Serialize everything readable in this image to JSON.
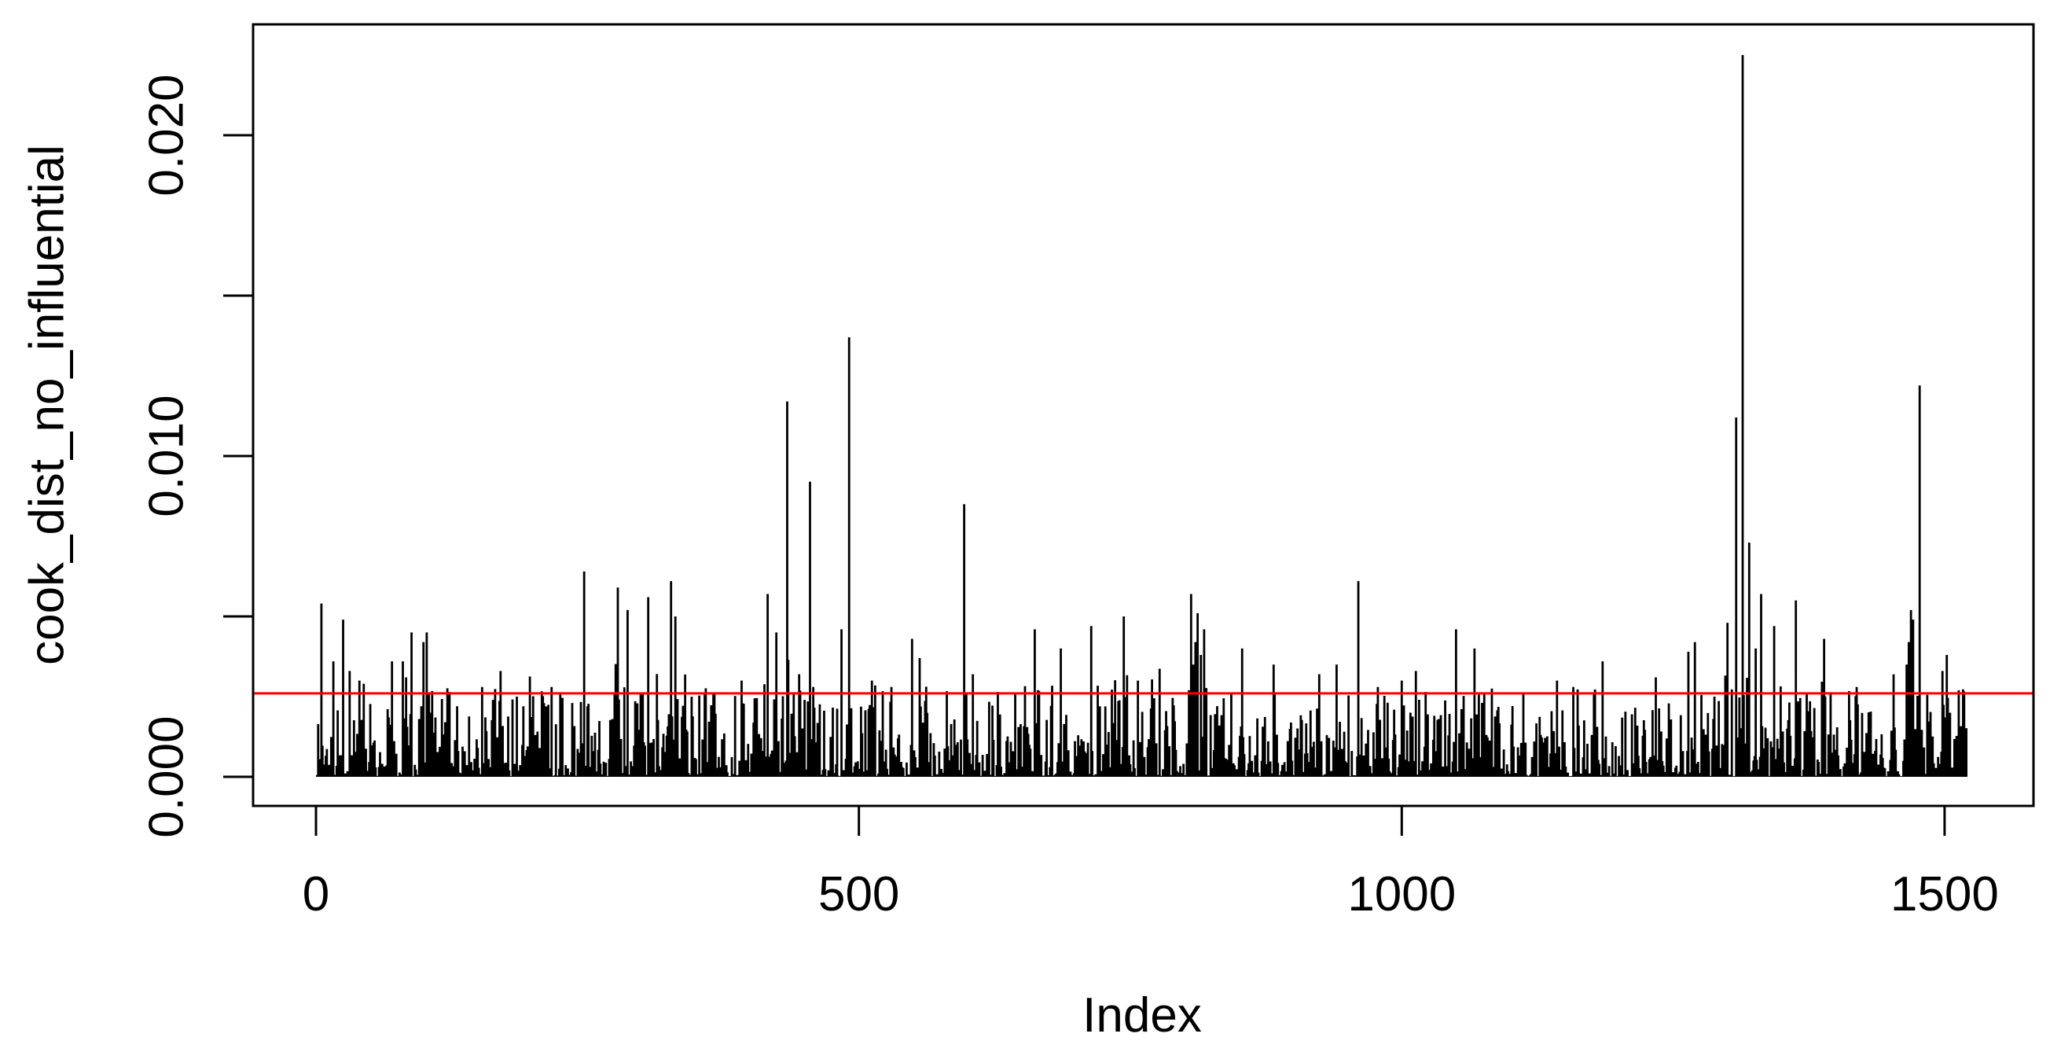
{
  "figure": {
    "background": "#FFFFFF",
    "title": ""
  },
  "chart_data": {
    "type": "bar",
    "subtype": "spike-needle-plot",
    "title": "",
    "xlabel": "Index",
    "ylabel": "cook_dist_no_influential",
    "grid": false,
    "legend": null,
    "series_color": "#000000",
    "axis_color": "#000000",
    "xlim": [
      -60,
      1580
    ],
    "ylim": [
      -0.0009,
      0.0235
    ],
    "x_ticks": [
      {
        "value": 0,
        "label": "0"
      },
      {
        "value": 500,
        "label": "500"
      },
      {
        "value": 1000,
        "label": "1000"
      },
      {
        "value": 1500,
        "label": "1500"
      }
    ],
    "y_ticks": [
      {
        "value": 0.0,
        "label": "0.000"
      },
      {
        "value": 0.005,
        "label": ""
      },
      {
        "value": 0.01,
        "label": "0.010"
      },
      {
        "value": 0.015,
        "label": ""
      },
      {
        "value": 0.02,
        "label": "0.020"
      }
    ],
    "threshold_line": {
      "value": 0.0026,
      "color": "#FF0000",
      "style": "solid"
    },
    "n_points": 1520,
    "max_point": {
      "index": 1314,
      "value": 0.0225
    },
    "notable_peaks": [
      [
        5,
        0.0054
      ],
      [
        16,
        0.0036
      ],
      [
        25,
        0.0049
      ],
      [
        31,
        0.0033
      ],
      [
        40,
        0.003
      ],
      [
        44,
        0.0029
      ],
      [
        70,
        0.0036
      ],
      [
        80,
        0.0036
      ],
      [
        83,
        0.0031
      ],
      [
        88,
        0.0045
      ],
      [
        95,
        0.0018
      ],
      [
        97,
        0.0022
      ],
      [
        99,
        0.0042
      ],
      [
        102,
        0.0045
      ],
      [
        104,
        0.0026
      ],
      [
        106,
        0.002
      ],
      [
        130,
        0.0022
      ],
      [
        153,
        0.0028
      ],
      [
        170,
        0.0033
      ],
      [
        185,
        0.0025
      ],
      [
        217,
        0.0028
      ],
      [
        236,
        0.0023
      ],
      [
        247,
        0.0064
      ],
      [
        250,
        0.0022
      ],
      [
        278,
        0.0059
      ],
      [
        287,
        0.0052
      ],
      [
        306,
        0.0056
      ],
      [
        327,
        0.0061
      ],
      [
        331,
        0.005
      ],
      [
        358,
        0.0026
      ],
      [
        392,
        0.003
      ],
      [
        416,
        0.0057
      ],
      [
        424,
        0.0045
      ],
      [
        434,
        0.0117
      ],
      [
        440,
        0.0026
      ],
      [
        445,
        0.0032
      ],
      [
        450,
        0.0024
      ],
      [
        455,
        0.0092
      ],
      [
        458,
        0.0028
      ],
      [
        484,
        0.0046
      ],
      [
        491,
        0.0137
      ],
      [
        512,
        0.003
      ],
      [
        530,
        0.0028
      ],
      [
        549,
        0.0043
      ],
      [
        556,
        0.0037
      ],
      [
        597,
        0.0085
      ],
      [
        605,
        0.0032
      ],
      [
        644,
        0.0026
      ],
      [
        662,
        0.0046
      ],
      [
        686,
        0.004
      ],
      [
        714,
        0.0047
      ],
      [
        744,
        0.005
      ],
      [
        757,
        0.003
      ],
      [
        806,
        0.0057
      ],
      [
        808,
        0.0035
      ],
      [
        810,
        0.0042
      ],
      [
        812,
        0.0051
      ],
      [
        815,
        0.0038
      ],
      [
        818,
        0.0046
      ],
      [
        853,
        0.004
      ],
      [
        882,
        0.0035
      ],
      [
        924,
        0.0032
      ],
      [
        940,
        0.0035
      ],
      [
        960,
        0.0061
      ],
      [
        978,
        0.0028
      ],
      [
        1000,
        0.003
      ],
      [
        1013,
        0.0033
      ],
      [
        1050,
        0.0046
      ],
      [
        1067,
        0.004
      ],
      [
        1143,
        0.003
      ],
      [
        1158,
        0.0028
      ],
      [
        1185,
        0.0036
      ],
      [
        1234,
        0.0031
      ],
      [
        1264,
        0.0039
      ],
      [
        1270,
        0.0042
      ],
      [
        1288,
        0.0025
      ],
      [
        1300,
        0.0048
      ],
      [
        1308,
        0.0112
      ],
      [
        1314,
        0.0225
      ],
      [
        1320,
        0.0073
      ],
      [
        1326,
        0.004
      ],
      [
        1331,
        0.0057
      ],
      [
        1343,
        0.0047
      ],
      [
        1363,
        0.0055
      ],
      [
        1389,
        0.0043
      ],
      [
        1419,
        0.0028
      ],
      [
        1465,
        0.0035
      ],
      [
        1467,
        0.0042
      ],
      [
        1469,
        0.0052
      ],
      [
        1471,
        0.0049
      ],
      [
        1477,
        0.0122
      ],
      [
        1498,
        0.0033
      ],
      [
        1502,
        0.0038
      ],
      [
        1513,
        0.0027
      ]
    ],
    "baseline_noise": {
      "seed": 1337,
      "min": 2e-05,
      "power": 2.6,
      "scale": 0.0028,
      "burst_prob": 0.028,
      "burst_base": 0.0018,
      "burst_span": 0.0019
    }
  }
}
